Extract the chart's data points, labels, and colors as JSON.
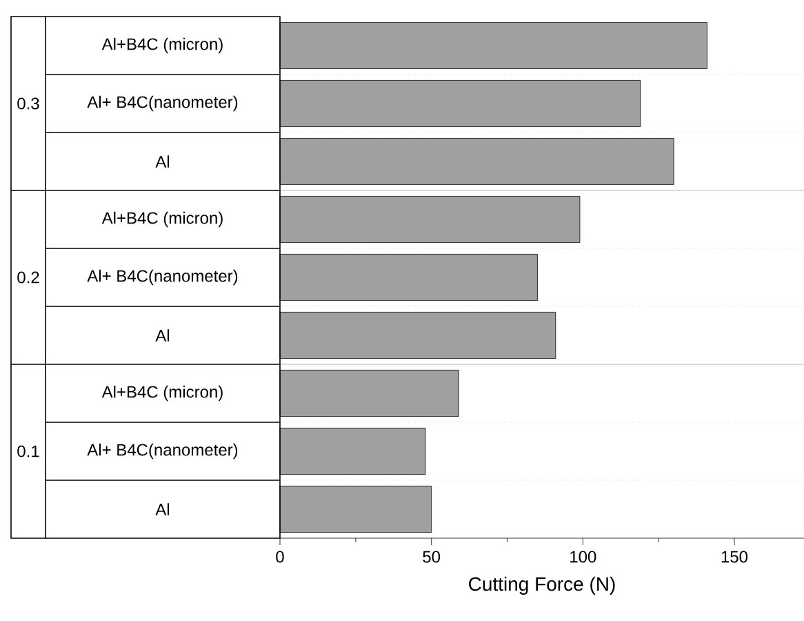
{
  "chart_data": {
    "type": "bar",
    "orientation": "horizontal",
    "xlabel": "Cutting Force (N)",
    "categories": [
      "Al+B4C (micron)",
      "Al+ B4C(nanometer)",
      "Al",
      "Al+B4C (micron)",
      "Al+ B4C(nanometer)",
      "Al",
      "Al+B4C (micron)",
      "Al+ B4C(nanometer)",
      "Al"
    ],
    "values": [
      141,
      119,
      130,
      99,
      85,
      91,
      59,
      48,
      50
    ],
    "color": "#a0a0a0",
    "xlim": [
      0,
      173
    ],
    "xticks": [
      0,
      50,
      100,
      150
    ],
    "grid": "y",
    "annotations": [
      "0.3",
      "0.2",
      "0.1"
    ]
  }
}
